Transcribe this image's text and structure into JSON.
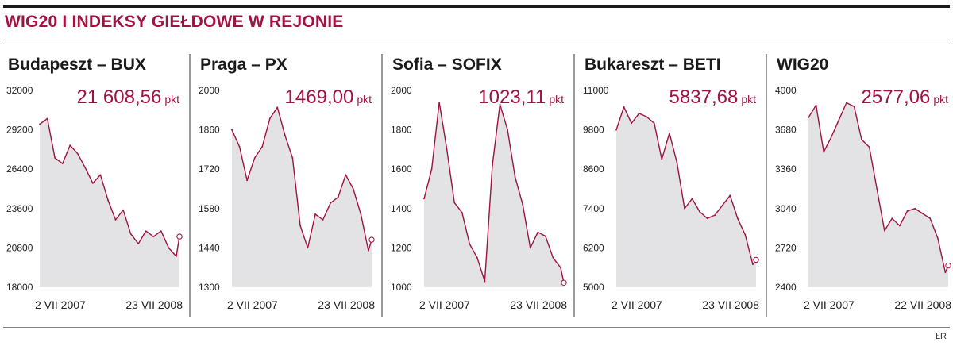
{
  "title": "WIG20 I INDEKSY GIEŁDOWE W REJONIE",
  "source": "ŁR",
  "colors": {
    "accent": "#a0123f",
    "fill": "#e3e3e5",
    "line": "#a0123f"
  },
  "chart_data": [
    {
      "type": "area",
      "title": "Budapeszt – BUX",
      "last_value_label": "21 608,56",
      "unit": "pkt",
      "yticks": [
        "32000",
        "29200",
        "26400",
        "23600",
        "20800",
        "18000"
      ],
      "ylim": [
        18000,
        32000
      ],
      "xlabels": [
        "2 VII 2007",
        "23 VII 2008"
      ],
      "xlim": [
        "2007-07-02",
        "2008-07-23"
      ],
      "x": [
        "2007-07-02",
        "2007-07-23",
        "2007-08-13",
        "2007-09-03",
        "2007-09-24",
        "2007-10-15",
        "2007-11-05",
        "2007-11-26",
        "2007-12-17",
        "2008-01-07",
        "2008-01-28",
        "2008-02-18",
        "2008-03-10",
        "2008-03-31",
        "2008-04-21",
        "2008-05-12",
        "2008-06-02",
        "2008-06-23",
        "2008-07-14",
        "2008-07-23"
      ],
      "values": [
        29600,
        30000,
        27200,
        26800,
        28100,
        27500,
        26500,
        25400,
        26000,
        24200,
        22800,
        23500,
        21800,
        21100,
        22000,
        21600,
        22000,
        20800,
        20200,
        21608
      ]
    },
    {
      "type": "area",
      "title": "Praga – PX",
      "last_value_label": "1469,00",
      "unit": "pkt",
      "yticks": [
        "2000",
        "1860",
        "1720",
        "1580",
        "1440",
        "1300"
      ],
      "ylim": [
        1300,
        2000
      ],
      "xlabels": [
        "2 VII 2007",
        "23 VII 2008"
      ],
      "xlim": [
        "2007-07-02",
        "2008-07-23"
      ],
      "x": [
        "2007-07-02",
        "2007-07-23",
        "2007-08-13",
        "2007-09-03",
        "2007-09-24",
        "2007-10-15",
        "2007-11-05",
        "2007-11-26",
        "2007-12-17",
        "2008-01-07",
        "2008-01-28",
        "2008-02-18",
        "2008-03-10",
        "2008-03-31",
        "2008-04-21",
        "2008-05-12",
        "2008-06-02",
        "2008-06-23",
        "2008-07-14",
        "2008-07-23"
      ],
      "values": [
        1860,
        1800,
        1680,
        1760,
        1800,
        1900,
        1940,
        1840,
        1760,
        1520,
        1440,
        1560,
        1540,
        1600,
        1620,
        1700,
        1650,
        1560,
        1430,
        1469
      ]
    },
    {
      "type": "area",
      "title": "Sofia – SOFIX",
      "last_value_label": "1023,11",
      "unit": "pkt",
      "yticks": [
        "2000",
        "1800",
        "1600",
        "1400",
        "1200",
        "1000"
      ],
      "ylim": [
        1000,
        2000
      ],
      "xlabels": [
        "2 VII 2007",
        "23 VII 2008"
      ],
      "xlim": [
        "2007-07-02",
        "2008-07-23"
      ],
      "x": [
        "2007-07-02",
        "2007-07-23",
        "2007-08-13",
        "2007-09-03",
        "2007-09-24",
        "2007-10-15",
        "2007-11-05",
        "2007-11-26",
        "2007-12-17",
        "2008-01-07",
        "2008-01-28",
        "2008-02-18",
        "2008-03-10",
        "2008-03-31",
        "2008-04-21",
        "2008-05-12",
        "2008-06-02",
        "2008-06-23",
        "2008-07-14",
        "2008-07-23"
      ],
      "values": [
        1450,
        1600,
        1940,
        1700,
        1430,
        1380,
        1220,
        1150,
        1030,
        1620,
        1930,
        1800,
        1560,
        1420,
        1200,
        1280,
        1260,
        1150,
        1100,
        1023
      ]
    },
    {
      "type": "area",
      "title": "Bukareszt – BETI",
      "last_value_label": "5837,68",
      "unit": "pkt",
      "yticks": [
        "11000",
        "9800",
        "8600",
        "7400",
        "6200",
        "5000"
      ],
      "ylim": [
        5000,
        11000
      ],
      "xlabels": [
        "2 VII 2007",
        "23 VII 2008"
      ],
      "xlim": [
        "2007-07-02",
        "2008-07-23"
      ],
      "x": [
        "2007-07-02",
        "2007-07-23",
        "2007-08-13",
        "2007-09-03",
        "2007-09-24",
        "2007-10-15",
        "2007-11-05",
        "2007-11-26",
        "2007-12-17",
        "2008-01-07",
        "2008-01-28",
        "2008-02-18",
        "2008-03-10",
        "2008-03-31",
        "2008-04-21",
        "2008-05-12",
        "2008-06-02",
        "2008-06-23",
        "2008-07-14",
        "2008-07-23"
      ],
      "values": [
        9800,
        10500,
        10000,
        10300,
        10200,
        10000,
        8900,
        9700,
        8800,
        7400,
        7700,
        7300,
        7100,
        7200,
        7500,
        7800,
        7100,
        6600,
        5700,
        5838
      ]
    },
    {
      "type": "area",
      "title": "WIG20",
      "last_value_label": "2577,06",
      "unit": "pkt",
      "yticks": [
        "4000",
        "3680",
        "3360",
        "3040",
        "2720",
        "2400"
      ],
      "ylim": [
        2400,
        4000
      ],
      "xlabels": [
        "2 VII 2007",
        "22 VII 2008"
      ],
      "xlim": [
        "2007-07-02",
        "2008-07-22"
      ],
      "x": [
        "2007-07-02",
        "2007-07-23",
        "2007-08-13",
        "2007-09-03",
        "2007-09-24",
        "2007-10-15",
        "2007-11-05",
        "2007-11-26",
        "2007-12-17",
        "2008-01-07",
        "2008-01-28",
        "2008-02-18",
        "2008-03-10",
        "2008-03-31",
        "2008-04-21",
        "2008-05-12",
        "2008-06-02",
        "2008-06-23",
        "2008-07-14",
        "2008-07-22"
      ],
      "values": [
        3780,
        3880,
        3500,
        3620,
        3760,
        3900,
        3870,
        3600,
        3540,
        3200,
        2860,
        2960,
        2900,
        3020,
        3040,
        3000,
        2960,
        2800,
        2520,
        2577
      ]
    }
  ]
}
